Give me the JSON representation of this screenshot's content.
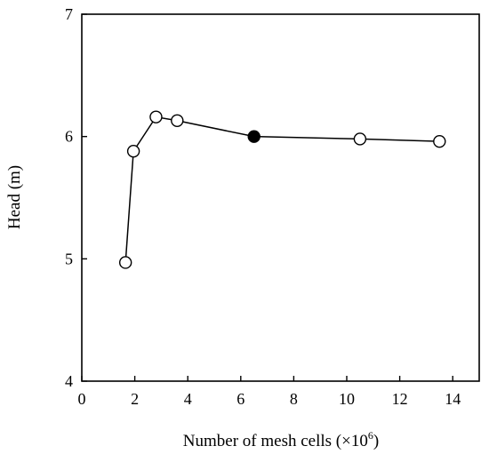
{
  "chart_data": {
    "type": "line",
    "title": "",
    "xlabel": "Number of mesh cells (×10",
    "xlabel_exponent": "6",
    "xlabel_close": ")",
    "ylabel": "Head (m)",
    "xlim": [
      0,
      15
    ],
    "ylim": [
      4,
      7
    ],
    "x_ticks": [
      0,
      2,
      4,
      6,
      8,
      10,
      12,
      14
    ],
    "y_ticks": [
      4,
      5,
      6,
      7
    ],
    "x_tick_labels": [
      "0",
      "2",
      "4",
      "6",
      "8",
      "10",
      "12",
      "14"
    ],
    "y_tick_labels": [
      "4",
      "5",
      "6",
      "7"
    ],
    "grid": false,
    "legend": "none",
    "series": [
      {
        "x": [
          1.65,
          1.95,
          2.8,
          3.6,
          6.5,
          10.5,
          13.5
        ],
        "y": [
          4.97,
          5.88,
          6.16,
          6.13,
          6.0,
          5.98,
          5.96
        ],
        "filled": [
          false,
          false,
          false,
          false,
          true,
          false,
          false
        ],
        "marker": "circle",
        "color": "#000000"
      }
    ]
  }
}
